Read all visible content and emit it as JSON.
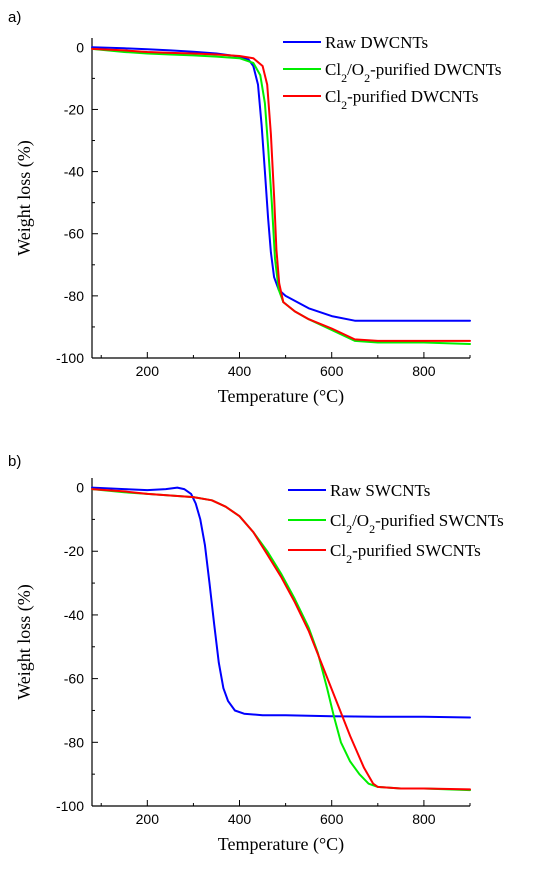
{
  "chart_data": [
    {
      "panel_label": "a)",
      "type": "line",
      "xlabel": "Temperature (°C)",
      "ylabel": "Weight loss (%)",
      "xlim": [
        80,
        900
      ],
      "ylim": [
        -100,
        3
      ],
      "xticks": [
        200,
        400,
        600,
        800
      ],
      "yticks": [
        0,
        -20,
        -40,
        -60,
        -80,
        -100
      ],
      "legend": "top-right",
      "series": [
        {
          "name_parts": [
            {
              "t": "Raw DWCNTs"
            }
          ],
          "color": "#0000ff",
          "points": [
            [
              80,
              0
            ],
            [
              150,
              -0.3
            ],
            [
              200,
              -0.6
            ],
            [
              250,
              -1
            ],
            [
              300,
              -1.4
            ],
            [
              350,
              -2
            ],
            [
              400,
              -3
            ],
            [
              420,
              -4
            ],
            [
              430,
              -6
            ],
            [
              440,
              -12
            ],
            [
              448,
              -25
            ],
            [
              455,
              -40
            ],
            [
              462,
              -55
            ],
            [
              468,
              -66
            ],
            [
              475,
              -74
            ],
            [
              485,
              -78
            ],
            [
              500,
              -80
            ],
            [
              550,
              -84
            ],
            [
              600,
              -86.5
            ],
            [
              650,
              -88
            ],
            [
              700,
              -88
            ],
            [
              800,
              -88
            ],
            [
              900,
              -88
            ]
          ]
        },
        {
          "name_parts": [
            {
              "t": "Cl"
            },
            {
              "t": "2",
              "sub": true
            },
            {
              "t": "/O"
            },
            {
              "t": "2",
              "sub": true
            },
            {
              "t": "-purified DWCNTs"
            }
          ],
          "color": "#00ee00",
          "points": [
            [
              80,
              -0.5
            ],
            [
              150,
              -1.5
            ],
            [
              200,
              -2
            ],
            [
              250,
              -2.3
            ],
            [
              300,
              -2.6
            ],
            [
              350,
              -3
            ],
            [
              400,
              -3.5
            ],
            [
              430,
              -5
            ],
            [
              445,
              -9
            ],
            [
              455,
              -18
            ],
            [
              462,
              -32
            ],
            [
              470,
              -50
            ],
            [
              477,
              -68
            ],
            [
              485,
              -78
            ],
            [
              495,
              -82
            ],
            [
              520,
              -85
            ],
            [
              550,
              -87.5
            ],
            [
              600,
              -91
            ],
            [
              650,
              -94.5
            ],
            [
              700,
              -95
            ],
            [
              800,
              -95
            ],
            [
              900,
              -95.5
            ]
          ]
        },
        {
          "name_parts": [
            {
              "t": "Cl"
            },
            {
              "t": "2",
              "sub": true
            },
            {
              "t": "-purified DWCNTs"
            }
          ],
          "color": "#ff0000",
          "points": [
            [
              80,
              -0.5
            ],
            [
              150,
              -1
            ],
            [
              200,
              -1.5
            ],
            [
              250,
              -1.8
            ],
            [
              300,
              -2
            ],
            [
              350,
              -2.3
            ],
            [
              400,
              -2.8
            ],
            [
              430,
              -3.5
            ],
            [
              450,
              -6
            ],
            [
              460,
              -12
            ],
            [
              468,
              -28
            ],
            [
              475,
              -48
            ],
            [
              480,
              -65
            ],
            [
              486,
              -76
            ],
            [
              495,
              -82
            ],
            [
              520,
              -85
            ],
            [
              550,
              -87.5
            ],
            [
              600,
              -90.5
            ],
            [
              650,
              -94
            ],
            [
              700,
              -94.5
            ],
            [
              800,
              -94.5
            ],
            [
              900,
              -94.5
            ]
          ]
        }
      ]
    },
    {
      "panel_label": "b)",
      "type": "line",
      "xlabel": "Temperature (°C)",
      "ylabel": "Weight loss (%)",
      "xlim": [
        80,
        900
      ],
      "ylim": [
        -100,
        3
      ],
      "xticks": [
        200,
        400,
        600,
        800
      ],
      "yticks": [
        0,
        -20,
        -40,
        -60,
        -80,
        -100
      ],
      "legend": "top-right",
      "series": [
        {
          "name_parts": [
            {
              "t": "Raw SWCNTs"
            }
          ],
          "color": "#0000ff",
          "points": [
            [
              80,
              0
            ],
            [
              150,
              -0.5
            ],
            [
              200,
              -0.8
            ],
            [
              240,
              -0.5
            ],
            [
              265,
              0
            ],
            [
              280,
              -0.5
            ],
            [
              295,
              -2
            ],
            [
              305,
              -5
            ],
            [
              315,
              -10
            ],
            [
              325,
              -18
            ],
            [
              335,
              -30
            ],
            [
              345,
              -43
            ],
            [
              355,
              -55
            ],
            [
              365,
              -63
            ],
            [
              375,
              -67
            ],
            [
              390,
              -70
            ],
            [
              410,
              -71
            ],
            [
              450,
              -71.5
            ],
            [
              500,
              -71.5
            ],
            [
              600,
              -71.8
            ],
            [
              700,
              -72
            ],
            [
              800,
              -72
            ],
            [
              900,
              -72.2
            ]
          ]
        },
        {
          "name_parts": [
            {
              "t": "Cl"
            },
            {
              "t": "2",
              "sub": true
            },
            {
              "t": "/O"
            },
            {
              "t": "2",
              "sub": true
            },
            {
              "t": "-purified SWCNTs"
            }
          ],
          "color": "#00ee00",
          "points": [
            [
              80,
              -0.5
            ],
            [
              150,
              -1.5
            ],
            [
              200,
              -2
            ],
            [
              250,
              -2.5
            ],
            [
              300,
              -3
            ],
            [
              340,
              -4
            ],
            [
              370,
              -6
            ],
            [
              400,
              -9
            ],
            [
              430,
              -14
            ],
            [
              460,
              -20
            ],
            [
              490,
              -27
            ],
            [
              520,
              -35
            ],
            [
              550,
              -44
            ],
            [
              570,
              -52
            ],
            [
              590,
              -63
            ],
            [
              605,
              -72
            ],
            [
              620,
              -80
            ],
            [
              640,
              -86
            ],
            [
              660,
              -90
            ],
            [
              680,
              -93
            ],
            [
              700,
              -94
            ],
            [
              750,
              -94.5
            ],
            [
              800,
              -94.5
            ],
            [
              900,
              -95
            ]
          ]
        },
        {
          "name_parts": [
            {
              "t": "Cl"
            },
            {
              "t": "2",
              "sub": true
            },
            {
              "t": "-purified SWCNTs"
            }
          ],
          "color": "#ff0000",
          "points": [
            [
              80,
              -0.5
            ],
            [
              150,
              -1.2
            ],
            [
              200,
              -2
            ],
            [
              250,
              -2.5
            ],
            [
              300,
              -3
            ],
            [
              340,
              -4
            ],
            [
              370,
              -6
            ],
            [
              400,
              -9
            ],
            [
              430,
              -14
            ],
            [
              460,
              -21
            ],
            [
              490,
              -28
            ],
            [
              520,
              -36
            ],
            [
              550,
              -45
            ],
            [
              580,
              -56
            ],
            [
              610,
              -67
            ],
            [
              640,
              -78
            ],
            [
              670,
              -88
            ],
            [
              690,
              -93
            ],
            [
              700,
              -94
            ],
            [
              750,
              -94.5
            ],
            [
              800,
              -94.5
            ],
            [
              900,
              -94.8
            ]
          ]
        }
      ]
    }
  ]
}
